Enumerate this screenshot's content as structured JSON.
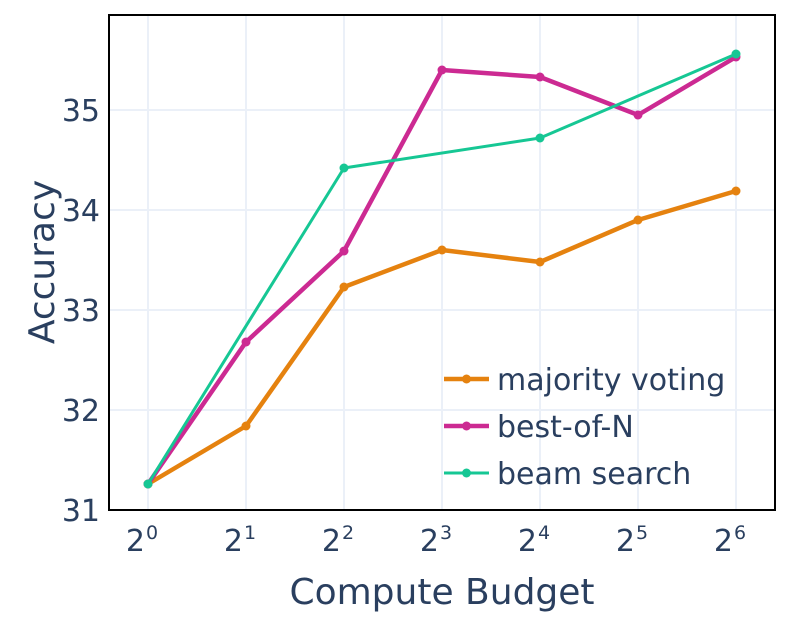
{
  "chart_data": {
    "type": "line",
    "x": [
      1,
      2,
      4,
      8,
      16,
      32,
      64
    ],
    "x_tick_labels": [
      {
        "base": "2",
        "exp": "0"
      },
      {
        "base": "2",
        "exp": "1"
      },
      {
        "base": "2",
        "exp": "2"
      },
      {
        "base": "2",
        "exp": "3"
      },
      {
        "base": "2",
        "exp": "4"
      },
      {
        "base": "2",
        "exp": "5"
      },
      {
        "base": "2",
        "exp": "6"
      }
    ],
    "x_scale": "log2",
    "xlabel": "Compute Budget",
    "ylabel": "Accuracy",
    "ylim": [
      31,
      35.95
    ],
    "y_ticks": [
      "31",
      "32",
      "33",
      "34",
      "35"
    ],
    "grid": true,
    "legend_position": "bottom-right",
    "series": [
      {
        "name": "majority voting",
        "color": "#e5820f",
        "values": [
          31.26,
          31.84,
          33.23,
          33.6,
          33.48,
          33.9,
          34.19
        ]
      },
      {
        "name": "best-of-N",
        "color": "#cc2a92",
        "values": [
          31.26,
          32.68,
          33.59,
          35.4,
          35.33,
          34.95,
          35.53
        ]
      },
      {
        "name": "beam search",
        "color": "#16c794",
        "values": [
          31.26,
          null,
          34.42,
          null,
          34.72,
          null,
          35.56
        ]
      }
    ]
  }
}
